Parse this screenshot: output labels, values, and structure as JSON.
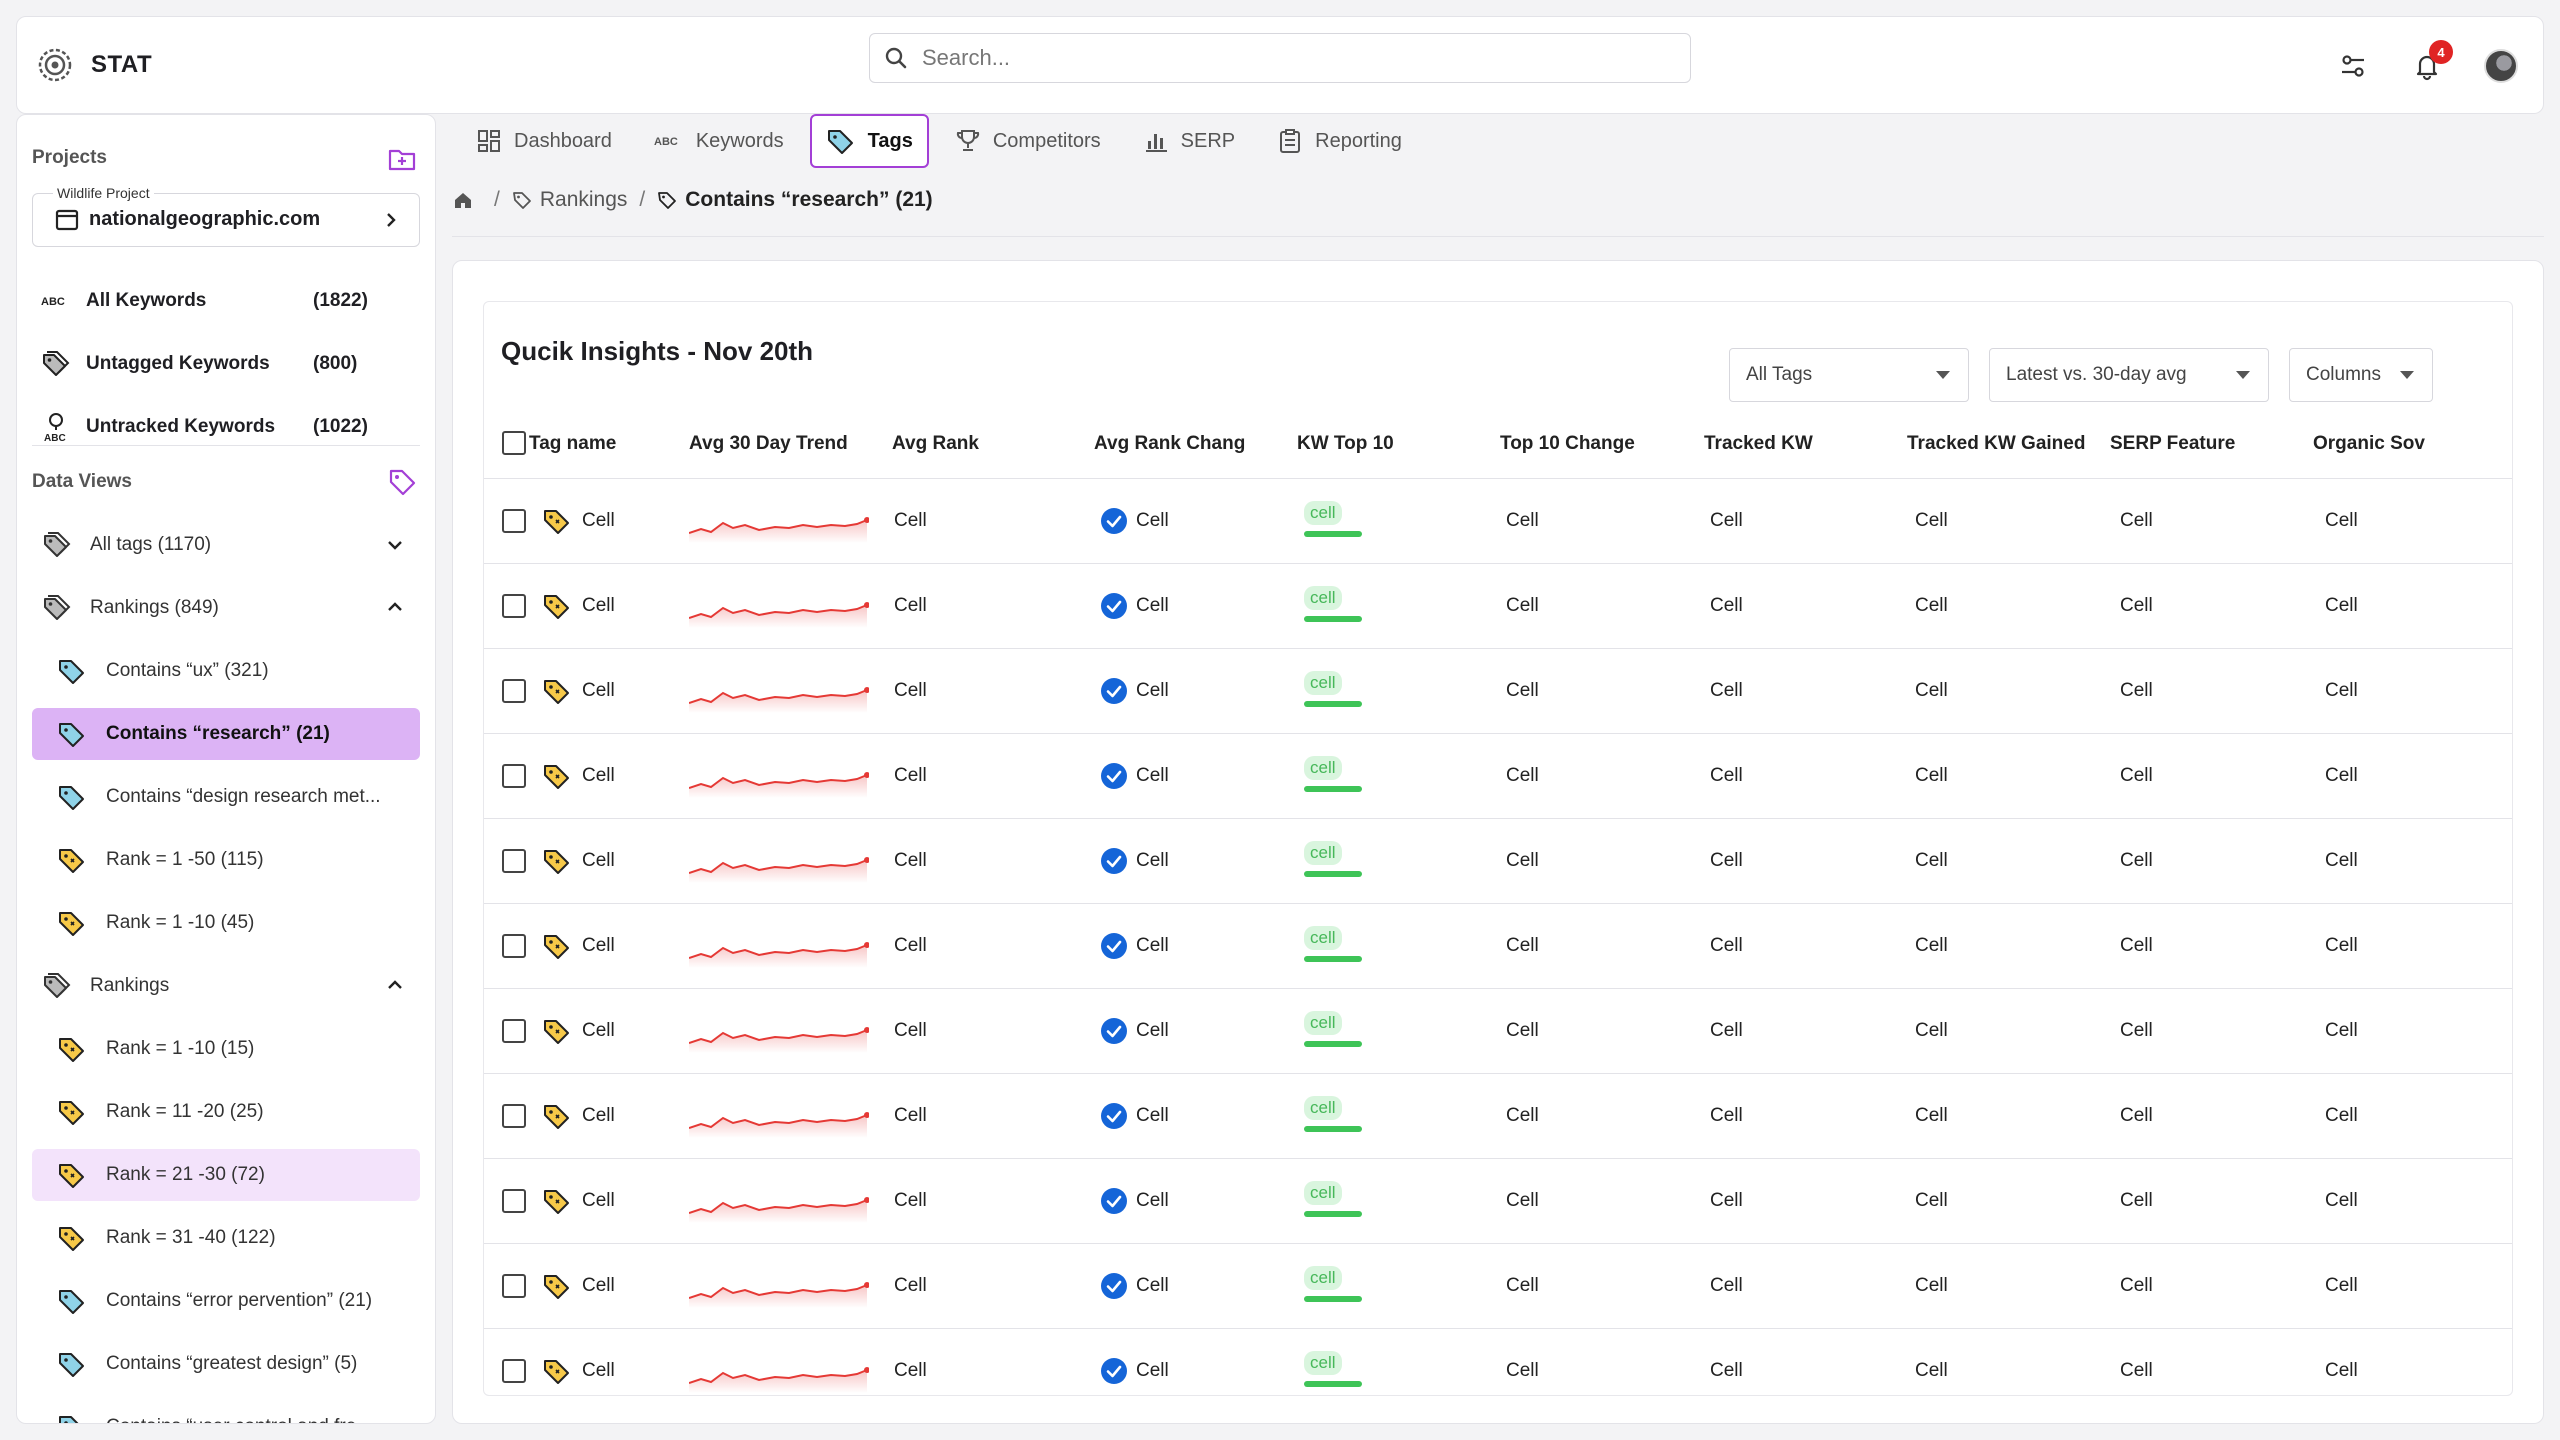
{
  "app": {
    "name": "STAT",
    "search_placeholder": "Search...",
    "notification_count": "4"
  },
  "sidebar": {
    "projects_title": "Projects",
    "project_label": "Wildlife Project",
    "project_domain": "nationalgeographic.com",
    "keywords": [
      {
        "label": "All Keywords",
        "count": "(1822)",
        "icon": "abc-icon"
      },
      {
        "label": "Untagged Keywords",
        "count": "(800)",
        "icon": "tags-icon"
      },
      {
        "label": "Untracked Keywords",
        "count": "(1022)",
        "icon": "pin-abc-icon"
      }
    ],
    "data_views_title": "Data Views",
    "tree": [
      {
        "label": "All tags (1170)",
        "level": 0,
        "icon": "tags-icon",
        "toggle": "down"
      },
      {
        "label": "Rankings (849)",
        "level": 0,
        "icon": "tags-icon",
        "toggle": "up"
      },
      {
        "label": "Contains “ux” (321)",
        "level": 1,
        "icon": "tag-icon"
      },
      {
        "label": "Contains “research” (21)",
        "level": 1,
        "icon": "tag-icon",
        "state": "active"
      },
      {
        "label": "Contains “design research met...",
        "level": 1,
        "icon": "tag-icon"
      },
      {
        "label": "Rank = 1 -50 (115)",
        "level": 1,
        "icon": "rank-tag-icon"
      },
      {
        "label": "Rank = 1 -10 (45)",
        "level": 1,
        "icon": "rank-tag-icon"
      },
      {
        "label": "Rankings",
        "level": 0,
        "icon": "tags-icon",
        "toggle": "up"
      },
      {
        "label": "Rank = 1 -10 (15)",
        "level": 1,
        "icon": "rank-tag-icon"
      },
      {
        "label": "Rank = 11 -20 (25)",
        "level": 1,
        "icon": "rank-tag-icon"
      },
      {
        "label": "Rank = 21 -30 (72)",
        "level": 1,
        "icon": "rank-tag-icon",
        "state": "soft"
      },
      {
        "label": "Rank = 31 -40 (122)",
        "level": 1,
        "icon": "rank-tag-icon"
      },
      {
        "label": "Contains “error pervention” (21)",
        "level": 1,
        "icon": "tag-icon"
      },
      {
        "label": "Contains “greatest design” (5)",
        "level": 1,
        "icon": "tag-icon"
      },
      {
        "label": "Contains “user control and fre...",
        "level": 1,
        "icon": "tag-icon"
      }
    ]
  },
  "tabs": [
    {
      "label": "Dashboard",
      "icon": "dashboard-icon"
    },
    {
      "label": "Keywords",
      "icon": "abc-icon"
    },
    {
      "label": "Tags",
      "icon": "tag-icon",
      "active": true
    },
    {
      "label": "Competitors",
      "icon": "trophy-icon"
    },
    {
      "label": "SERP",
      "icon": "bar-chart-icon"
    },
    {
      "label": "Reporting",
      "icon": "report-icon"
    }
  ],
  "breadcrumb": {
    "parent": "Rankings",
    "current": "Contains “research” (21)"
  },
  "table": {
    "title": "Qucik Insights - Nov 20th",
    "filters": {
      "tags": "All Tags",
      "comparison": "Latest vs. 30-day avg",
      "columns": "Columns"
    },
    "headers": [
      "Tag name",
      "Avg 30 Day Trend",
      "Avg Rank",
      "Avg Rank Chang",
      "KW Top 10",
      "Top 10 Change",
      "Tracked KW",
      "Tracked KW Gained",
      "SERP Feature",
      "Organic Sov"
    ],
    "rows": [
      {
        "tag": "Cell",
        "avg_rank": "Cell",
        "rank_change": "Cell",
        "kw_top10": "cell",
        "top10_change": "Cell",
        "tracked": "Cell",
        "gained": "Cell",
        "serp": "Cell",
        "sov": "Cell"
      },
      {
        "tag": "Cell",
        "avg_rank": "Cell",
        "rank_change": "Cell",
        "kw_top10": "cell",
        "top10_change": "Cell",
        "tracked": "Cell",
        "gained": "Cell",
        "serp": "Cell",
        "sov": "Cell"
      },
      {
        "tag": "Cell",
        "avg_rank": "Cell",
        "rank_change": "Cell",
        "kw_top10": "cell",
        "top10_change": "Cell",
        "tracked": "Cell",
        "gained": "Cell",
        "serp": "Cell",
        "sov": "Cell"
      },
      {
        "tag": "Cell",
        "avg_rank": "Cell",
        "rank_change": "Cell",
        "kw_top10": "cell",
        "top10_change": "Cell",
        "tracked": "Cell",
        "gained": "Cell",
        "serp": "Cell",
        "sov": "Cell"
      },
      {
        "tag": "Cell",
        "avg_rank": "Cell",
        "rank_change": "Cell",
        "kw_top10": "cell",
        "top10_change": "Cell",
        "tracked": "Cell",
        "gained": "Cell",
        "serp": "Cell",
        "sov": "Cell"
      },
      {
        "tag": "Cell",
        "avg_rank": "Cell",
        "rank_change": "Cell",
        "kw_top10": "cell",
        "top10_change": "Cell",
        "tracked": "Cell",
        "gained": "Cell",
        "serp": "Cell",
        "sov": "Cell"
      },
      {
        "tag": "Cell",
        "avg_rank": "Cell",
        "rank_change": "Cell",
        "kw_top10": "cell",
        "top10_change": "Cell",
        "tracked": "Cell",
        "gained": "Cell",
        "serp": "Cell",
        "sov": "Cell"
      },
      {
        "tag": "Cell",
        "avg_rank": "Cell",
        "rank_change": "Cell",
        "kw_top10": "cell",
        "top10_change": "Cell",
        "tracked": "Cell",
        "gained": "Cell",
        "serp": "Cell",
        "sov": "Cell"
      },
      {
        "tag": "Cell",
        "avg_rank": "Cell",
        "rank_change": "Cell",
        "kw_top10": "cell",
        "top10_change": "Cell",
        "tracked": "Cell",
        "gained": "Cell",
        "serp": "Cell",
        "sov": "Cell"
      },
      {
        "tag": "Cell",
        "avg_rank": "Cell",
        "rank_change": "Cell",
        "kw_top10": "cell",
        "top10_change": "Cell",
        "tracked": "Cell",
        "gained": "Cell",
        "serp": "Cell",
        "sov": "Cell"
      },
      {
        "tag": "Cell",
        "avg_rank": "Cell",
        "rank_change": "Cell",
        "kw_top10": "cell",
        "top10_change": "Cell",
        "tracked": "Cell",
        "gained": "Cell",
        "serp": "Cell",
        "sov": "Cell"
      }
    ]
  },
  "colors": {
    "accent": "#a33fd6",
    "active_row": "#dcb3f5",
    "soft_row": "#f3e3fb",
    "spark_line": "#e53935",
    "check_blue": "#1565d8",
    "pill_green": "#3ec457"
  }
}
